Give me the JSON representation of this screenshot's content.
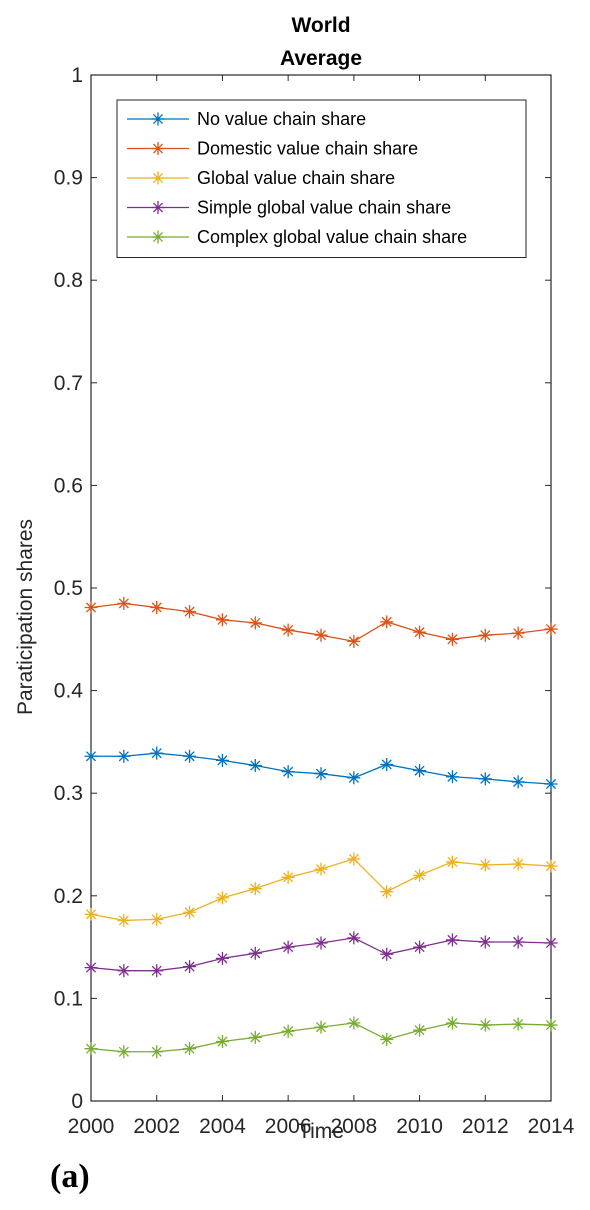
{
  "chart_data": {
    "type": "line",
    "title": [
      "World",
      "Average"
    ],
    "xlabel": "Time",
    "ylabel": "Paraticipation shares",
    "panel_label": "(a)",
    "xlim": [
      2000,
      2014
    ],
    "ylim": [
      0,
      1
    ],
    "xticks": [
      2000,
      2002,
      2004,
      2006,
      2008,
      2010,
      2012,
      2014
    ],
    "xtick_labels": [
      "2000",
      "2002",
      "2004",
      "2006",
      "2008",
      "2010",
      "2012",
      "2014"
    ],
    "yticks": [
      0,
      0.1,
      0.2,
      0.3,
      0.4,
      0.5,
      0.6,
      0.7,
      0.8,
      0.9,
      1
    ],
    "ytick_labels": [
      "0",
      "0.1",
      "0.2",
      "0.3",
      "0.4",
      "0.5",
      "0.6",
      "0.7",
      "0.8",
      "0.9",
      "1"
    ],
    "grid": false,
    "legend_position": "top",
    "marker": "asterisk",
    "x": [
      2000,
      2001,
      2002,
      2003,
      2004,
      2005,
      2006,
      2007,
      2008,
      2009,
      2010,
      2011,
      2012,
      2013,
      2014
    ],
    "series": [
      {
        "name": "No value chain share",
        "color": "#0072BD",
        "values": [
          0.336,
          0.336,
          0.339,
          0.336,
          0.332,
          0.327,
          0.321,
          0.319,
          0.315,
          0.328,
          0.322,
          0.316,
          0.314,
          0.311,
          0.309
        ]
      },
      {
        "name": "Domestic value chain share",
        "color": "#D95319",
        "values": [
          0.481,
          0.485,
          0.481,
          0.477,
          0.469,
          0.466,
          0.459,
          0.454,
          0.448,
          0.467,
          0.457,
          0.45,
          0.454,
          0.456,
          0.46
        ]
      },
      {
        "name": "Global value chain share",
        "color": "#EDB120",
        "values": [
          0.182,
          0.176,
          0.177,
          0.184,
          0.198,
          0.207,
          0.218,
          0.226,
          0.236,
          0.204,
          0.22,
          0.233,
          0.23,
          0.231,
          0.229
        ]
      },
      {
        "name": "Simple global value chain share",
        "color": "#7E2F8E",
        "values": [
          0.13,
          0.127,
          0.127,
          0.131,
          0.139,
          0.144,
          0.15,
          0.154,
          0.159,
          0.143,
          0.15,
          0.157,
          0.155,
          0.155,
          0.154
        ]
      },
      {
        "name": "Complex global value chain share",
        "color": "#77AC30",
        "values": [
          0.051,
          0.048,
          0.048,
          0.051,
          0.058,
          0.062,
          0.068,
          0.072,
          0.076,
          0.06,
          0.069,
          0.076,
          0.074,
          0.075,
          0.074
        ]
      }
    ]
  }
}
